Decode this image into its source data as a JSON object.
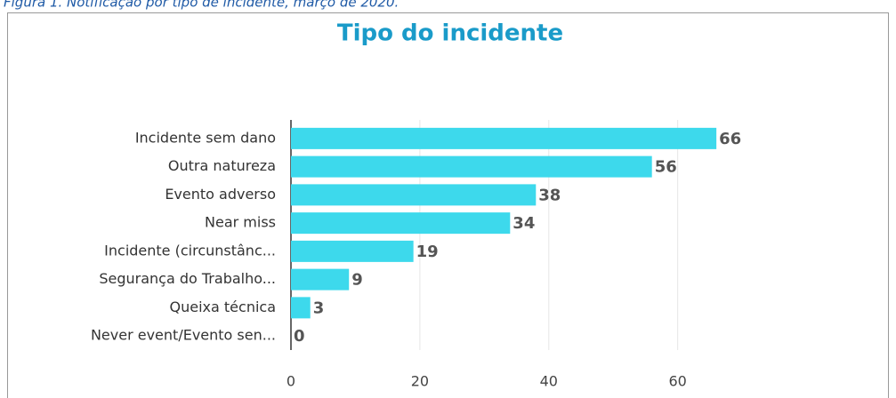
{
  "caption": "Figura 1. Notificação por tipo de incidente, março de 2020.",
  "chart_data": {
    "type": "bar",
    "orientation": "horizontal",
    "title": "Tipo do incidente",
    "categories": [
      "Incidente sem dano",
      "Outra natureza",
      "Evento adverso",
      "Near miss",
      "Incidente (circunstânc...",
      "Segurança do Trabalho...",
      "Queixa técnica",
      "Never event/Evento sen..."
    ],
    "values": [
      66,
      56,
      38,
      34,
      19,
      9,
      3,
      0
    ],
    "color": "#3dd9ec",
    "xlim": [
      0,
      90
    ],
    "xticks": [
      0,
      20,
      40,
      60
    ],
    "grid": true
  }
}
